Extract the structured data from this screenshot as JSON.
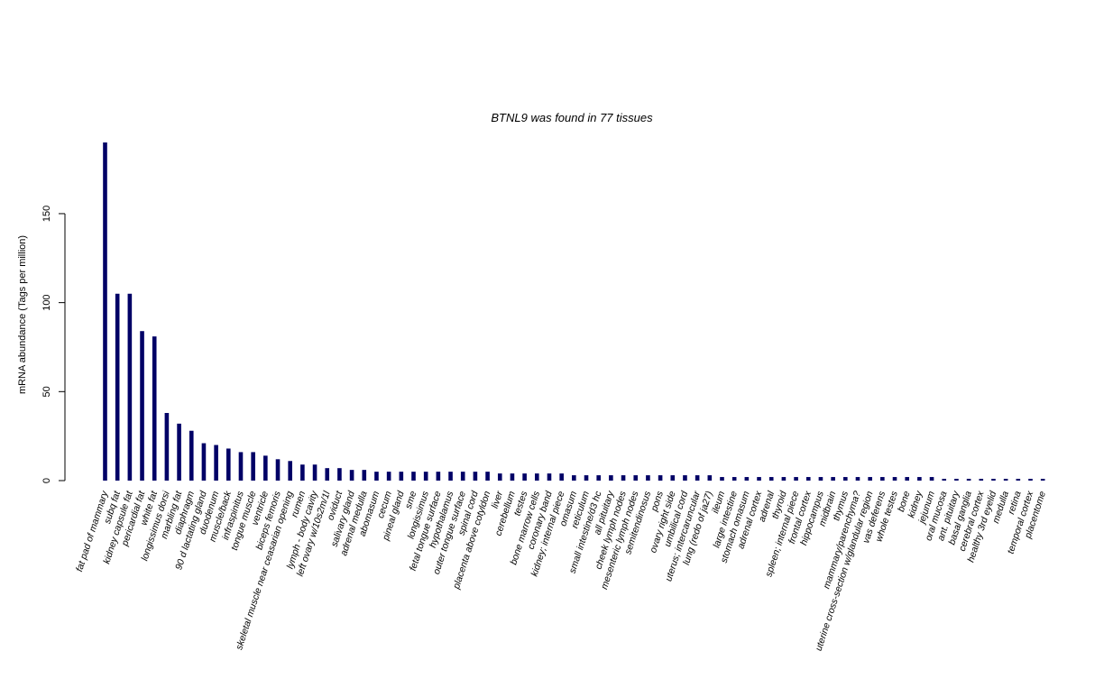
{
  "chart_data": {
    "type": "bar",
    "title": "BTNL9  was found in  77  tissues",
    "xlabel": "",
    "ylabel": "mRNA abundance (Tags per million)",
    "ylim": [
      0,
      190
    ],
    "yticks": [
      0,
      50,
      100,
      150
    ],
    "bar_color": "#000066",
    "grid": false,
    "categories": [
      "fat pad of mammary",
      "subq fat",
      "kidney capsule fat",
      "pericardial fat",
      "white fat",
      "longissimus dorsi",
      "marbling fat",
      "diaphragm",
      "90 d lactating gland",
      "duodenum",
      "muscle/back",
      "infraspinitus",
      "tongue muscle",
      "ventricle",
      "biceps femoris",
      "skeletal muscle near ceasarian opening",
      "rumen",
      "lymph - body cavity",
      "left ovary w/10s2m/1l",
      "oviduct",
      "salivary gland",
      "adrenal medulla",
      "abomasum",
      "cecum",
      "pineal gland",
      "sme",
      "longissimus",
      "fetal tongue surface",
      "hypothalamus",
      "outer tongue surface",
      "spinal cord",
      "placenta above cotyldon",
      "liver",
      "cerebellum",
      "testes",
      "bone marrow cells",
      "coronary band",
      "kidney; internal piece",
      "omasum",
      "reticulum",
      "small intestine/d3 hc",
      "all pituitary",
      "cheek lymph nodes",
      "mesenteric lymph nodes",
      "semitendinosus",
      "pons",
      "ovary right side",
      "umbilical cord",
      "uterus; intercaruncular",
      "lung (redo of ja27)",
      "ileum",
      "large intestine",
      "stomach omasum",
      "adrenal cortex",
      "adrenal",
      "thyroid",
      "spleen; internal piece",
      "frontal cortex",
      "hippocampus",
      "midbrain",
      "thymus",
      "mammary/parenchyma?",
      "uterine cross-section w/glandular region",
      "vas deferens",
      "whole testes",
      "bone",
      "kidney",
      "jejunum",
      "oral mucosa",
      "ant. pituitary",
      "basal ganglia",
      "cerebral cortex",
      "healthy 3rd eyelid",
      "medulla",
      "retina",
      "temporal cortex",
      "placentome"
    ],
    "values": [
      190,
      105,
      105,
      84,
      81,
      38,
      32,
      28,
      21,
      20,
      18,
      16,
      16,
      14,
      12,
      11,
      9,
      9,
      7,
      7,
      6,
      6,
      5,
      5,
      5,
      5,
      5,
      5,
      5,
      5,
      5,
      5,
      4,
      4,
      4,
      4,
      4,
      4,
      3,
      3,
      3,
      3,
      3,
      3,
      3,
      3,
      3,
      3,
      3,
      3,
      2,
      2,
      2,
      2,
      2,
      2,
      2,
      2,
      2,
      2,
      2,
      2,
      2,
      2,
      2,
      2,
      2,
      2,
      1,
      1,
      1,
      1,
      1,
      1,
      1,
      1,
      1
    ]
  }
}
